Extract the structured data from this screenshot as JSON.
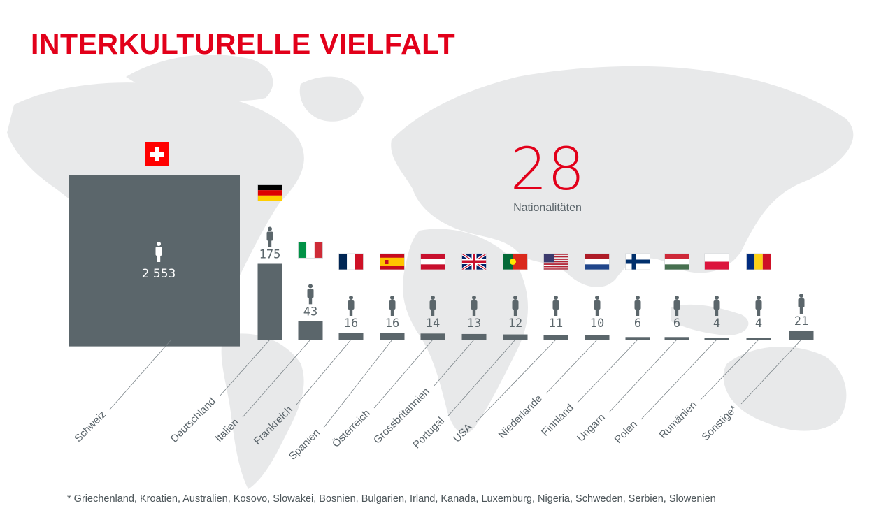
{
  "title": "INTERKULTURELLE VIELFALT",
  "highlight": {
    "value": "28",
    "label": "Nationalitäten"
  },
  "footnote": "* Griechenland, Kroatien, Australien, Kosovo, Slowakei, Bosnien, Bulgarien, Irland, Kanada, Luxemburg, Nigeria, Schweden, Serbien, Slowenien",
  "colors": {
    "accent": "#e2001a",
    "bar": "#5b666b",
    "map": "#e8e9ea"
  },
  "chart_data": {
    "type": "bar",
    "title": "",
    "icon": "person-icon",
    "categories": [
      "Schweiz",
      "Deutschland",
      "Italien",
      "Frankreich",
      "Spanien",
      "Österreich",
      "Grossbritannien",
      "Portugal",
      "USA",
      "Niederlande",
      "Finnland",
      "Ungarn",
      "Polen",
      "Rumänien",
      "Sonstige*"
    ],
    "values": [
      2553,
      175,
      43,
      16,
      16,
      14,
      13,
      12,
      11,
      10,
      6,
      6,
      4,
      4,
      21
    ],
    "value_labels": [
      "2 553",
      "175",
      "43",
      "16",
      "16",
      "14",
      "13",
      "12",
      "11",
      "10",
      "6",
      "6",
      "4",
      "4",
      "21"
    ],
    "flags": [
      "switzerland",
      "germany",
      "italy",
      "france",
      "spain",
      "austria",
      "united-kingdom",
      "portugal",
      "usa",
      "netherlands",
      "finland",
      "hungary",
      "poland",
      "romania",
      ""
    ]
  }
}
